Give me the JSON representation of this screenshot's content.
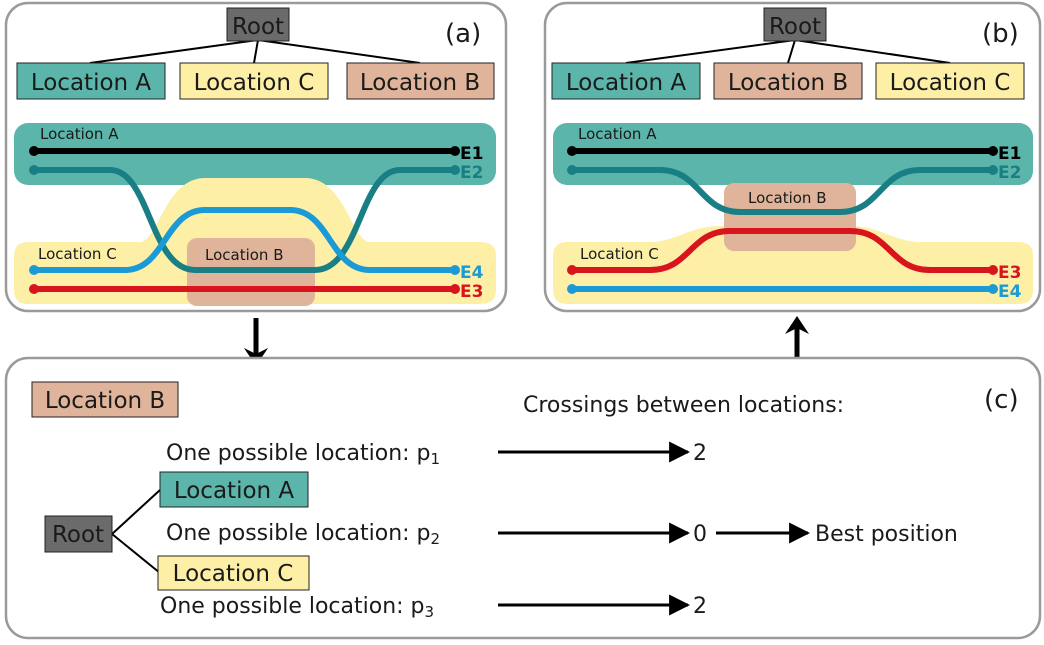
{
  "colors": {
    "location_a": "#5bb5ab",
    "location_b": "#dfb49a",
    "location_c": "#fdf0a6",
    "root": "#6b6b6b",
    "e1": "#000000",
    "e2": "#197f84",
    "e3": "#d8141c",
    "e4": "#1b9ad6"
  },
  "panel_a": {
    "letter": "(a)",
    "root": "Root",
    "tree": [
      "Location A",
      "Location C",
      "Location B"
    ],
    "band_labels": {
      "a": "Location A",
      "b": "Location B",
      "c": "Location C"
    },
    "edges": {
      "e1": "E1",
      "e2": "E2",
      "e3": "E3",
      "e4": "E4"
    }
  },
  "panel_b": {
    "letter": "(b)",
    "root": "Root",
    "tree": [
      "Location A",
      "Location B",
      "Location C"
    ],
    "band_labels": {
      "a": "Location A",
      "b": "Location B",
      "c": "Location C"
    },
    "edges": {
      "e1": "E1",
      "e2": "E2",
      "e3": "E3",
      "e4": "E4"
    }
  },
  "panel_c": {
    "letter": "(c)",
    "node": "Location B",
    "heading": "Crossings between locations:",
    "root": "Root",
    "child_a": "Location A",
    "child_c": "Location C",
    "options": [
      {
        "text": "One possible location: p",
        "sub": "1",
        "crossings": "2"
      },
      {
        "text": "One possible location: p",
        "sub": "2",
        "crossings": "0"
      },
      {
        "text": "One possible location: p",
        "sub": "3",
        "crossings": "2"
      }
    ],
    "best": "Best position"
  }
}
